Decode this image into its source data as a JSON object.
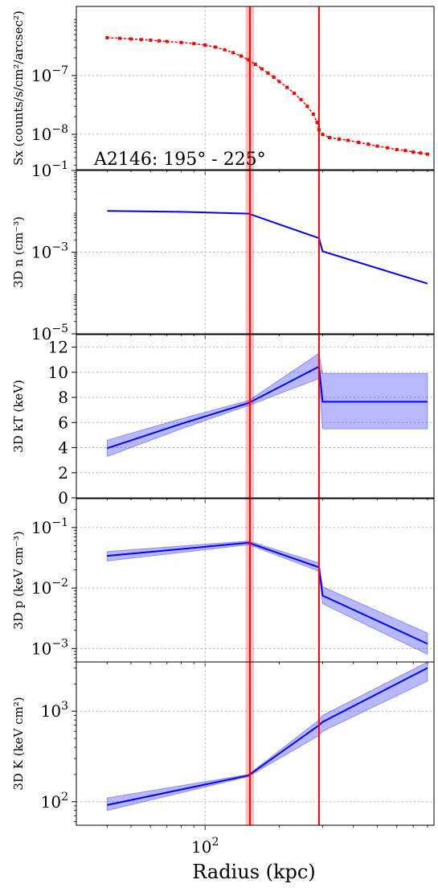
{
  "chart_data": [
    {
      "type": "scatter",
      "ylabel": "Sx (counts/s/cm²/arcsec²)",
      "xscale": "log",
      "yscale": "log",
      "xlim": [
        30,
        850
      ],
      "ylim": [
        2.5e-09,
        1.5e-06
      ],
      "grid": true,
      "yticks": [
        {
          "value": 1e-07,
          "label": "10",
          "exp": "−7"
        },
        {
          "value": 1e-08,
          "label": "10",
          "exp": "−8"
        }
      ],
      "annotation": "A2146: 195° - 225°",
      "series": [
        {
          "color": "#ff0000",
          "style": "dashed-points",
          "x": [
            40,
            45,
            50,
            55,
            60,
            65,
            70,
            80,
            90,
            100,
            110,
            120,
            130,
            140,
            150,
            160,
            170,
            180,
            190,
            200,
            215,
            230,
            245,
            260,
            275,
            285,
            290,
            300,
            320,
            350,
            380,
            420,
            460,
            500,
            550,
            600,
            650,
            700,
            750,
            800
          ],
          "y": [
            4.4e-07,
            4.3e-07,
            4.2e-07,
            4.1e-07,
            4e-07,
            3.9e-07,
            3.8e-07,
            3.65e-07,
            3.5e-07,
            3.3e-07,
            3.05e-07,
            2.75e-07,
            2.45e-07,
            2.15e-07,
            1.85e-07,
            1.55e-07,
            1.3e-07,
            1.1e-07,
            9.4e-08,
            7.9e-08,
            6.3e-08,
            5e-08,
            3.9e-08,
            3e-08,
            2.2e-08,
            1.6e-08,
            1.2e-08,
            1e-08,
            8.8e-09,
            8.3e-09,
            7.9e-09,
            7.3e-09,
            6.8e-09,
            6.3e-09,
            5.9e-09,
            5.5e-09,
            5.3e-09,
            5e-09,
            4.8e-09,
            4.6e-09
          ]
        }
      ]
    },
    {
      "type": "line",
      "ylabel": "3D n (cm⁻³)",
      "xscale": "log",
      "yscale": "log",
      "xlim": [
        30,
        850
      ],
      "ylim": [
        1e-05,
        0.1
      ],
      "grid": true,
      "yticks": [
        {
          "value": 0.1,
          "label": "10",
          "exp": "−1"
        },
        {
          "value": 0.001,
          "label": "10",
          "exp": "−3"
        },
        {
          "value": 1e-05,
          "label": "10",
          "exp": "−5"
        }
      ],
      "series": [
        {
          "color": "#0000ff",
          "x": [
            40,
            80,
            150,
            290,
            300,
            800
          ],
          "y": [
            0.0102,
            0.0097,
            0.0088,
            0.0022,
            0.00105,
            0.00017
          ]
        }
      ]
    },
    {
      "type": "area",
      "ylabel": "3D kT (keV)",
      "xscale": "log",
      "yscale": "linear",
      "xlim": [
        30,
        850
      ],
      "ylim": [
        0,
        13
      ],
      "grid": true,
      "yticks": [
        {
          "value": 0,
          "label": "0"
        },
        {
          "value": 2,
          "label": "2"
        },
        {
          "value": 4,
          "label": "4"
        },
        {
          "value": 6,
          "label": "6"
        },
        {
          "value": 8,
          "label": "8"
        },
        {
          "value": 10,
          "label": "10"
        },
        {
          "value": 12,
          "label": "12"
        }
      ],
      "series": [
        {
          "color": "#0000ff",
          "x": [
            40,
            80,
            150,
            290,
            300,
            800
          ],
          "y": [
            3.95,
            5.9,
            7.55,
            10.45,
            7.65,
            7.65
          ],
          "lower": [
            3.3,
            5.5,
            7.35,
            9.5,
            5.5,
            5.5
          ],
          "upper": [
            4.6,
            6.3,
            7.75,
            11.5,
            9.9,
            9.9
          ]
        }
      ]
    },
    {
      "type": "area",
      "ylabel": "3D p (keV cm⁻³)",
      "xscale": "log",
      "yscale": "log",
      "xlim": [
        30,
        850
      ],
      "ylim": [
        0.0006,
        0.3
      ],
      "grid": true,
      "yticks": [
        {
          "value": 0.1,
          "label": "10",
          "exp": "−1"
        },
        {
          "value": 0.01,
          "label": "10",
          "exp": "−2"
        },
        {
          "value": 0.001,
          "label": "10",
          "exp": "−3"
        }
      ],
      "series": [
        {
          "color": "#0000ff",
          "x": [
            40,
            150,
            290,
            300,
            800
          ],
          "y": [
            0.034,
            0.056,
            0.022,
            0.0075,
            0.0012
          ],
          "lower": [
            0.028,
            0.052,
            0.019,
            0.0055,
            0.0008
          ],
          "upper": [
            0.04,
            0.06,
            0.026,
            0.0105,
            0.0018
          ]
        }
      ]
    },
    {
      "type": "area",
      "ylabel": "3D K (keV cm²)",
      "xscale": "log",
      "yscale": "log",
      "xlim": [
        30,
        850
      ],
      "ylim": [
        55,
        3500
      ],
      "grid": true,
      "yticks": [
        {
          "value": 1000,
          "label": "10",
          "exp": "3"
        },
        {
          "value": 100,
          "label": "10",
          "exp": "2"
        }
      ],
      "xticks": [
        {
          "value": 100,
          "label": "10",
          "exp": "2"
        }
      ],
      "xlabel": "Radius (kpc)",
      "series": [
        {
          "color": "#0000ff",
          "x": [
            40,
            150,
            290,
            300,
            800
          ],
          "y": [
            92,
            195,
            700,
            760,
            3000
          ],
          "lower": [
            80,
            190,
            540,
            600,
            2150
          ],
          "upper": [
            110,
            200,
            800,
            900,
            3500
          ]
        }
      ]
    }
  ],
  "vertical_lines": [
    {
      "x": 152,
      "color": "#ff0000",
      "band": [
        146,
        158
      ]
    },
    {
      "x": 290,
      "color": "#ff0000",
      "band": [
        288,
        292
      ]
    }
  ]
}
